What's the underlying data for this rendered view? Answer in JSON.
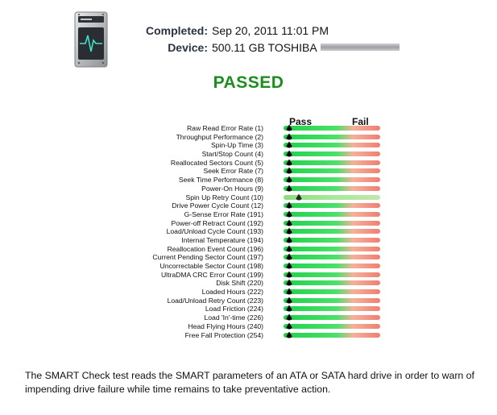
{
  "summary": {
    "completed_label": "Completed:",
    "completed_value": "Sep 20, 2011 11:01 PM",
    "device_label": "Device:",
    "device_value": "500.11 GB TOSHIBA"
  },
  "status": {
    "text": "PASSED",
    "color": "#1b8f1b"
  },
  "columns": {
    "pass": "Pass",
    "fail": "Fail"
  },
  "attributes": [
    {
      "label": "Raw Read Error Rate (1)",
      "level": 0.06
    },
    {
      "label": "Throughput Performance (2)",
      "level": 0.06
    },
    {
      "label": "Spin-Up Time (3)",
      "level": 0.06
    },
    {
      "label": "Start/Stop Count (4)",
      "level": 0.06
    },
    {
      "label": "Reallocated Sectors Count (5)",
      "level": 0.06
    },
    {
      "label": "Seek Error Rate (7)",
      "level": 0.06
    },
    {
      "label": "Seek Time Performance (8)",
      "level": 0.06
    },
    {
      "label": "Power-On Hours (9)",
      "level": 0.06
    },
    {
      "label": "Spin Up Retry Count (10)",
      "level": 0.16,
      "neutral": true
    },
    {
      "label": "Drive Power Cycle Count (12)",
      "level": 0.06
    },
    {
      "label": "G-Sense Error Rate (191)",
      "level": 0.06
    },
    {
      "label": "Power-off Retract Count (192)",
      "level": 0.06
    },
    {
      "label": "Load/Unload Cycle Count (193)",
      "level": 0.06
    },
    {
      "label": "Internal Temperature (194)",
      "level": 0.06
    },
    {
      "label": "Reallocation Event Count (196)",
      "level": 0.06
    },
    {
      "label": "Current Pending Sector Count (197)",
      "level": 0.06
    },
    {
      "label": "Uncorrectable Sector Count (198)",
      "level": 0.06
    },
    {
      "label": "UltraDMA CRC Error Count (199)",
      "level": 0.06
    },
    {
      "label": "Disk Shift (220)",
      "level": 0.06
    },
    {
      "label": "Loaded Hours (222)",
      "level": 0.06
    },
    {
      "label": "Load/Unload Retry Count (223)",
      "level": 0.06
    },
    {
      "label": "Load Friction (224)",
      "level": 0.06
    },
    {
      "label": "Load 'In'-time (226)",
      "level": 0.06
    },
    {
      "label": "Head Flying Hours (240)",
      "level": 0.06
    },
    {
      "label": "Free Fall Protection (254)",
      "level": 0.06
    }
  ],
  "description": "The SMART Check test reads the SMART parameters of an ATA or SATA hard drive in order to warn of impending drive failure while time remains to take preventative action.",
  "icons": {
    "app": "hard-drive-monitor-icon",
    "marker": "pointer-icon"
  }
}
